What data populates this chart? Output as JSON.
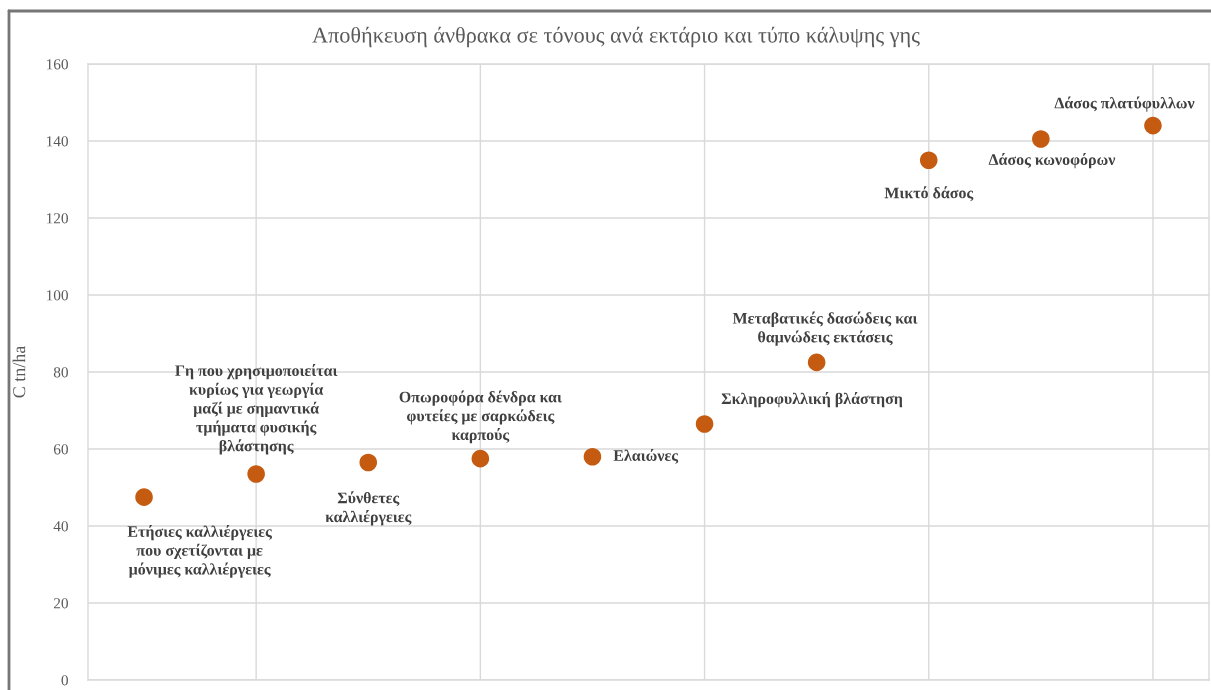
{
  "chart_data": {
    "type": "scatter",
    "title": "Αποθήκευση άνθρακα σε τόνους ανά εκτάριο και τύπο κάλυψης γης",
    "ylabel": "C tn/ha",
    "categories": [
      null,
      null,
      null,
      null,
      null,
      null,
      null,
      null,
      null,
      null
    ],
    "values": [
      47.5,
      53.5,
      56.5,
      57.5,
      58,
      66.5,
      82.5,
      135,
      140.5,
      144
    ],
    "value_labels": [
      "Ετήσιες καλλιέργειες\nπου σχετίζονται με\nμόνιμες καλλιέργειες",
      "Γη που χρησιμοποιείται\nκυρίως για γεωργία\nμαζί με σημαντικά\nτμήματα φυσικής\nβλάστησης",
      "Σύνθετες\nκαλλιέργειες",
      "Οπωροφόρα δένδρα και\nφυτείες με σαρκώδεις\nκαρπούς",
      "Ελαιώνες",
      "Σκληροφυλλική βλάστηση",
      "Μεταβατικές δασώδεις και\nθαμνώδεις εκτάσεις",
      "Μικτό δάσος",
      "Δάσος κωνοφόρων",
      "Δάσος πλατύφυλλων"
    ],
    "color": "#c55a11",
    "marker": "circle",
    "ylim": [
      0,
      160
    ],
    "yticks": [
      0,
      20,
      40,
      60,
      80,
      100,
      120,
      140,
      160
    ],
    "grid": true,
    "tick_labels": "y"
  }
}
